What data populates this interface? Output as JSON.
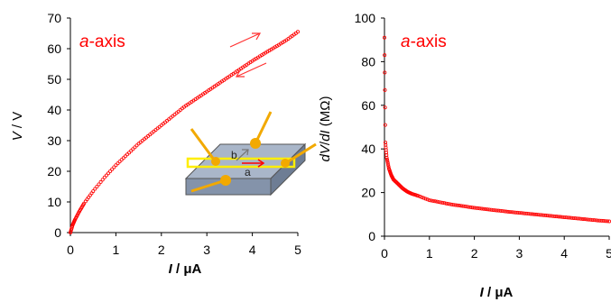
{
  "chart_data": [
    {
      "type": "scatter",
      "annotation": {
        "prefix": "a",
        "suffix": "-axis"
      },
      "xlabel": {
        "symbol": "I",
        "unit": " / μA"
      },
      "ylabel": {
        "symbol": "V",
        "unit": " / V"
      },
      "xlim": [
        0,
        5
      ],
      "ylim": [
        0,
        70
      ],
      "xticks": [
        "0",
        "1",
        "2",
        "3",
        "4",
        "5"
      ],
      "yticks": [
        "0",
        "10",
        "20",
        "30",
        "40",
        "50",
        "60",
        "70"
      ],
      "series": [
        {
          "color": "#ff0000",
          "x": [
            0,
            0.05,
            0.1,
            0.2,
            0.3,
            0.5,
            0.75,
            1,
            1.25,
            1.5,
            1.75,
            2,
            2.25,
            2.5,
            2.75,
            3,
            3.25,
            3.5,
            3.75,
            4,
            4.25,
            4.5,
            4.75,
            5
          ],
          "y": [
            0,
            2.5,
            4.2,
            7,
            9.5,
            13.5,
            18,
            22,
            25.5,
            29,
            32,
            35,
            38,
            41,
            43.5,
            46,
            48.5,
            51,
            53.5,
            56,
            58.3,
            60.5,
            62.8,
            65.5
          ]
        }
      ],
      "arrows": [
        "forward",
        "backward"
      ],
      "inset": {
        "type": "sample-schematic",
        "labels": {
          "b": "b",
          "a": "a"
        }
      }
    },
    {
      "type": "scatter",
      "annotation": {
        "prefix": "a",
        "suffix": "-axis"
      },
      "xlabel": {
        "symbol": "I",
        "unit": " / μA"
      },
      "ylabel": {
        "parts": [
          "dV",
          "/",
          "dI",
          " (MΩ)"
        ]
      },
      "xlim": [
        0,
        5
      ],
      "ylim": [
        0,
        100
      ],
      "xticks": [
        "0",
        "1",
        "2",
        "3",
        "4",
        "5"
      ],
      "yticks": [
        "0",
        "20",
        "40",
        "60",
        "80",
        "100"
      ],
      "series": [
        {
          "color": "#ff0000",
          "x": [
            0,
            0.02,
            0.05,
            0.1,
            0.15,
            0.2,
            0.3,
            0.4,
            0.5,
            0.6,
            0.75,
            1,
            1.25,
            1.5,
            1.75,
            2,
            2.25,
            2.5,
            2.75,
            3,
            3.25,
            3.5,
            3.75,
            4,
            4.25,
            4.5,
            4.75,
            5
          ],
          "y": [
            91,
            43,
            36,
            31,
            28,
            26,
            24,
            22,
            20.5,
            19.5,
            18.5,
            16.5,
            15.5,
            14.5,
            13.8,
            13,
            12.4,
            11.8,
            11.2,
            10.7,
            10.2,
            9.7,
            9.2,
            8.7,
            8.2,
            7.7,
            7.2,
            6.8
          ]
        }
      ]
    }
  ]
}
